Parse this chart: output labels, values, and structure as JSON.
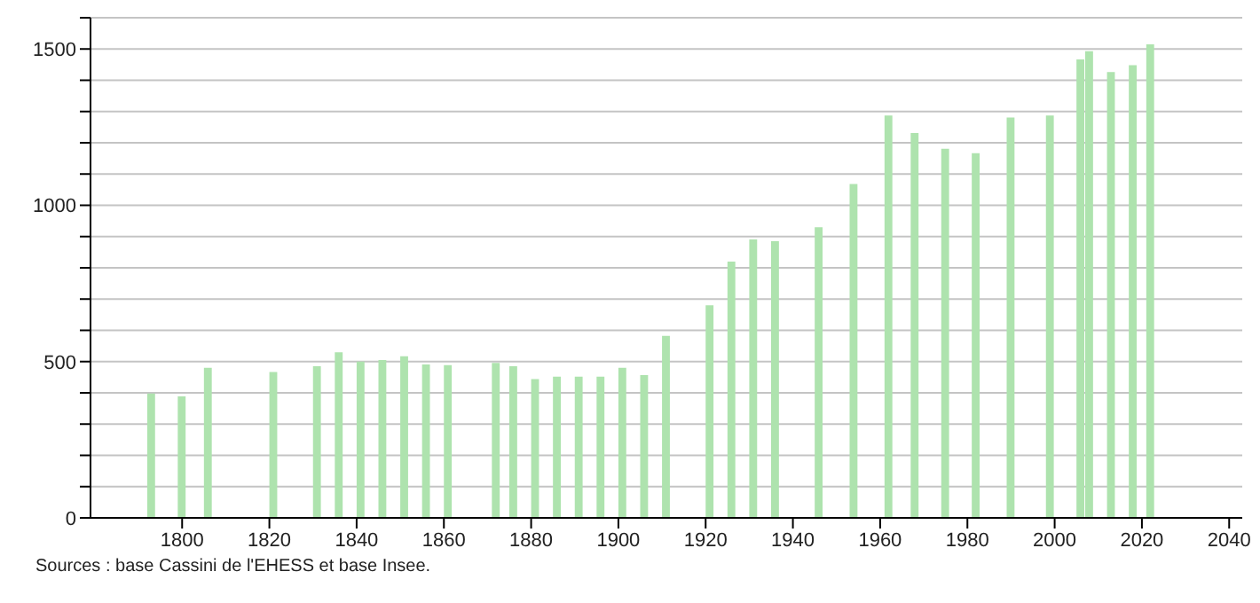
{
  "chart_data": {
    "type": "bar",
    "x": [
      1793,
      1800,
      1806,
      1821,
      1831,
      1836,
      1841,
      1846,
      1851,
      1856,
      1861,
      1872,
      1876,
      1881,
      1886,
      1891,
      1896,
      1901,
      1906,
      1911,
      1921,
      1926,
      1931,
      1936,
      1946,
      1954,
      1962,
      1968,
      1975,
      1982,
      1990,
      1999,
      2006,
      2008,
      2013,
      2018,
      2022
    ],
    "values": [
      398,
      389,
      480,
      467,
      485,
      530,
      500,
      505,
      517,
      491,
      489,
      496,
      485,
      444,
      452,
      452,
      452,
      480,
      457,
      582,
      680,
      820,
      891,
      885,
      930,
      1068,
      1287,
      1231,
      1181,
      1167,
      1281,
      1287,
      1467,
      1493,
      1426,
      1448,
      1515
    ],
    "color": "#aee3ae",
    "xlim": [
      1779,
      2043
    ],
    "xticks": [
      1800,
      1820,
      1840,
      1860,
      1880,
      1900,
      1920,
      1940,
      1960,
      1980,
      2000,
      2020,
      2040
    ],
    "ylim": [
      0,
      1600
    ],
    "yticks": [
      0,
      {
        "value": 100,
        "label": null
      },
      {
        "value": 200,
        "label": null
      },
      {
        "value": 300,
        "label": null
      },
      {
        "value": 400,
        "label": null
      },
      500,
      {
        "value": 600,
        "label": null
      },
      {
        "value": 700,
        "label": null
      },
      {
        "value": 800,
        "label": null
      },
      {
        "value": 900,
        "label": null
      },
      1000,
      {
        "value": 1100,
        "label": null
      },
      {
        "value": 1200,
        "label": null
      },
      {
        "value": 1300,
        "label": null
      },
      {
        "value": 1400,
        "label": null
      },
      1500,
      {
        "value": 1600,
        "label": null
      }
    ],
    "grid": "y",
    "annotations": [
      "Sources : base Cassini de l'EHESS et base Insee."
    ]
  }
}
